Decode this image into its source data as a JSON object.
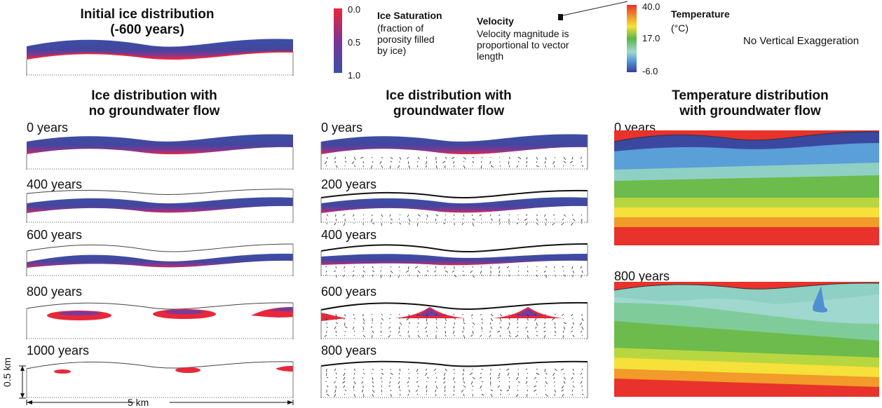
{
  "initial": {
    "title_l1": "Initial ice distribution",
    "title_l2": "(-600 years)"
  },
  "col1": {
    "title_l1": "Ice distribution with",
    "title_l2": "no groundwater flow",
    "times": [
      "0 years",
      "400 years",
      "600 years",
      "800 years",
      "1000 years"
    ]
  },
  "col2": {
    "title_l1": "Ice distribution with",
    "title_l2": "groundwater flow",
    "times": [
      "0 years",
      "200 years",
      "400 years",
      "600 years",
      "800 years"
    ]
  },
  "col3": {
    "title_l1": "Temperature  distribution",
    "title_l2": "with groundwater flow",
    "times": [
      "0 years",
      "800 years"
    ]
  },
  "ice_legend": {
    "title": "Ice Saturation",
    "desc_1": "(fraction of",
    "desc_2": "porosity filled",
    "desc_3": "by ice)",
    "ticks": [
      "0.0",
      "0.5",
      "1.0"
    ]
  },
  "velocity_legend": {
    "title": "Velocity",
    "desc_1": "Velocity magnitude is",
    "desc_2": "proportional to vector",
    "desc_3": "length"
  },
  "temp_legend": {
    "title": "Temperature",
    "unit": "(°C)",
    "ticks": [
      "40.0",
      "17.0",
      "-6.0"
    ]
  },
  "note": "No Vertical Exaggeration",
  "scale": {
    "vertical": "0.5 km",
    "horizontal": "5 km"
  },
  "colors": {
    "ice_high": "#3a4aa8",
    "ice_low": "#e8283a",
    "ice_mid": "#7a3a9a"
  }
}
